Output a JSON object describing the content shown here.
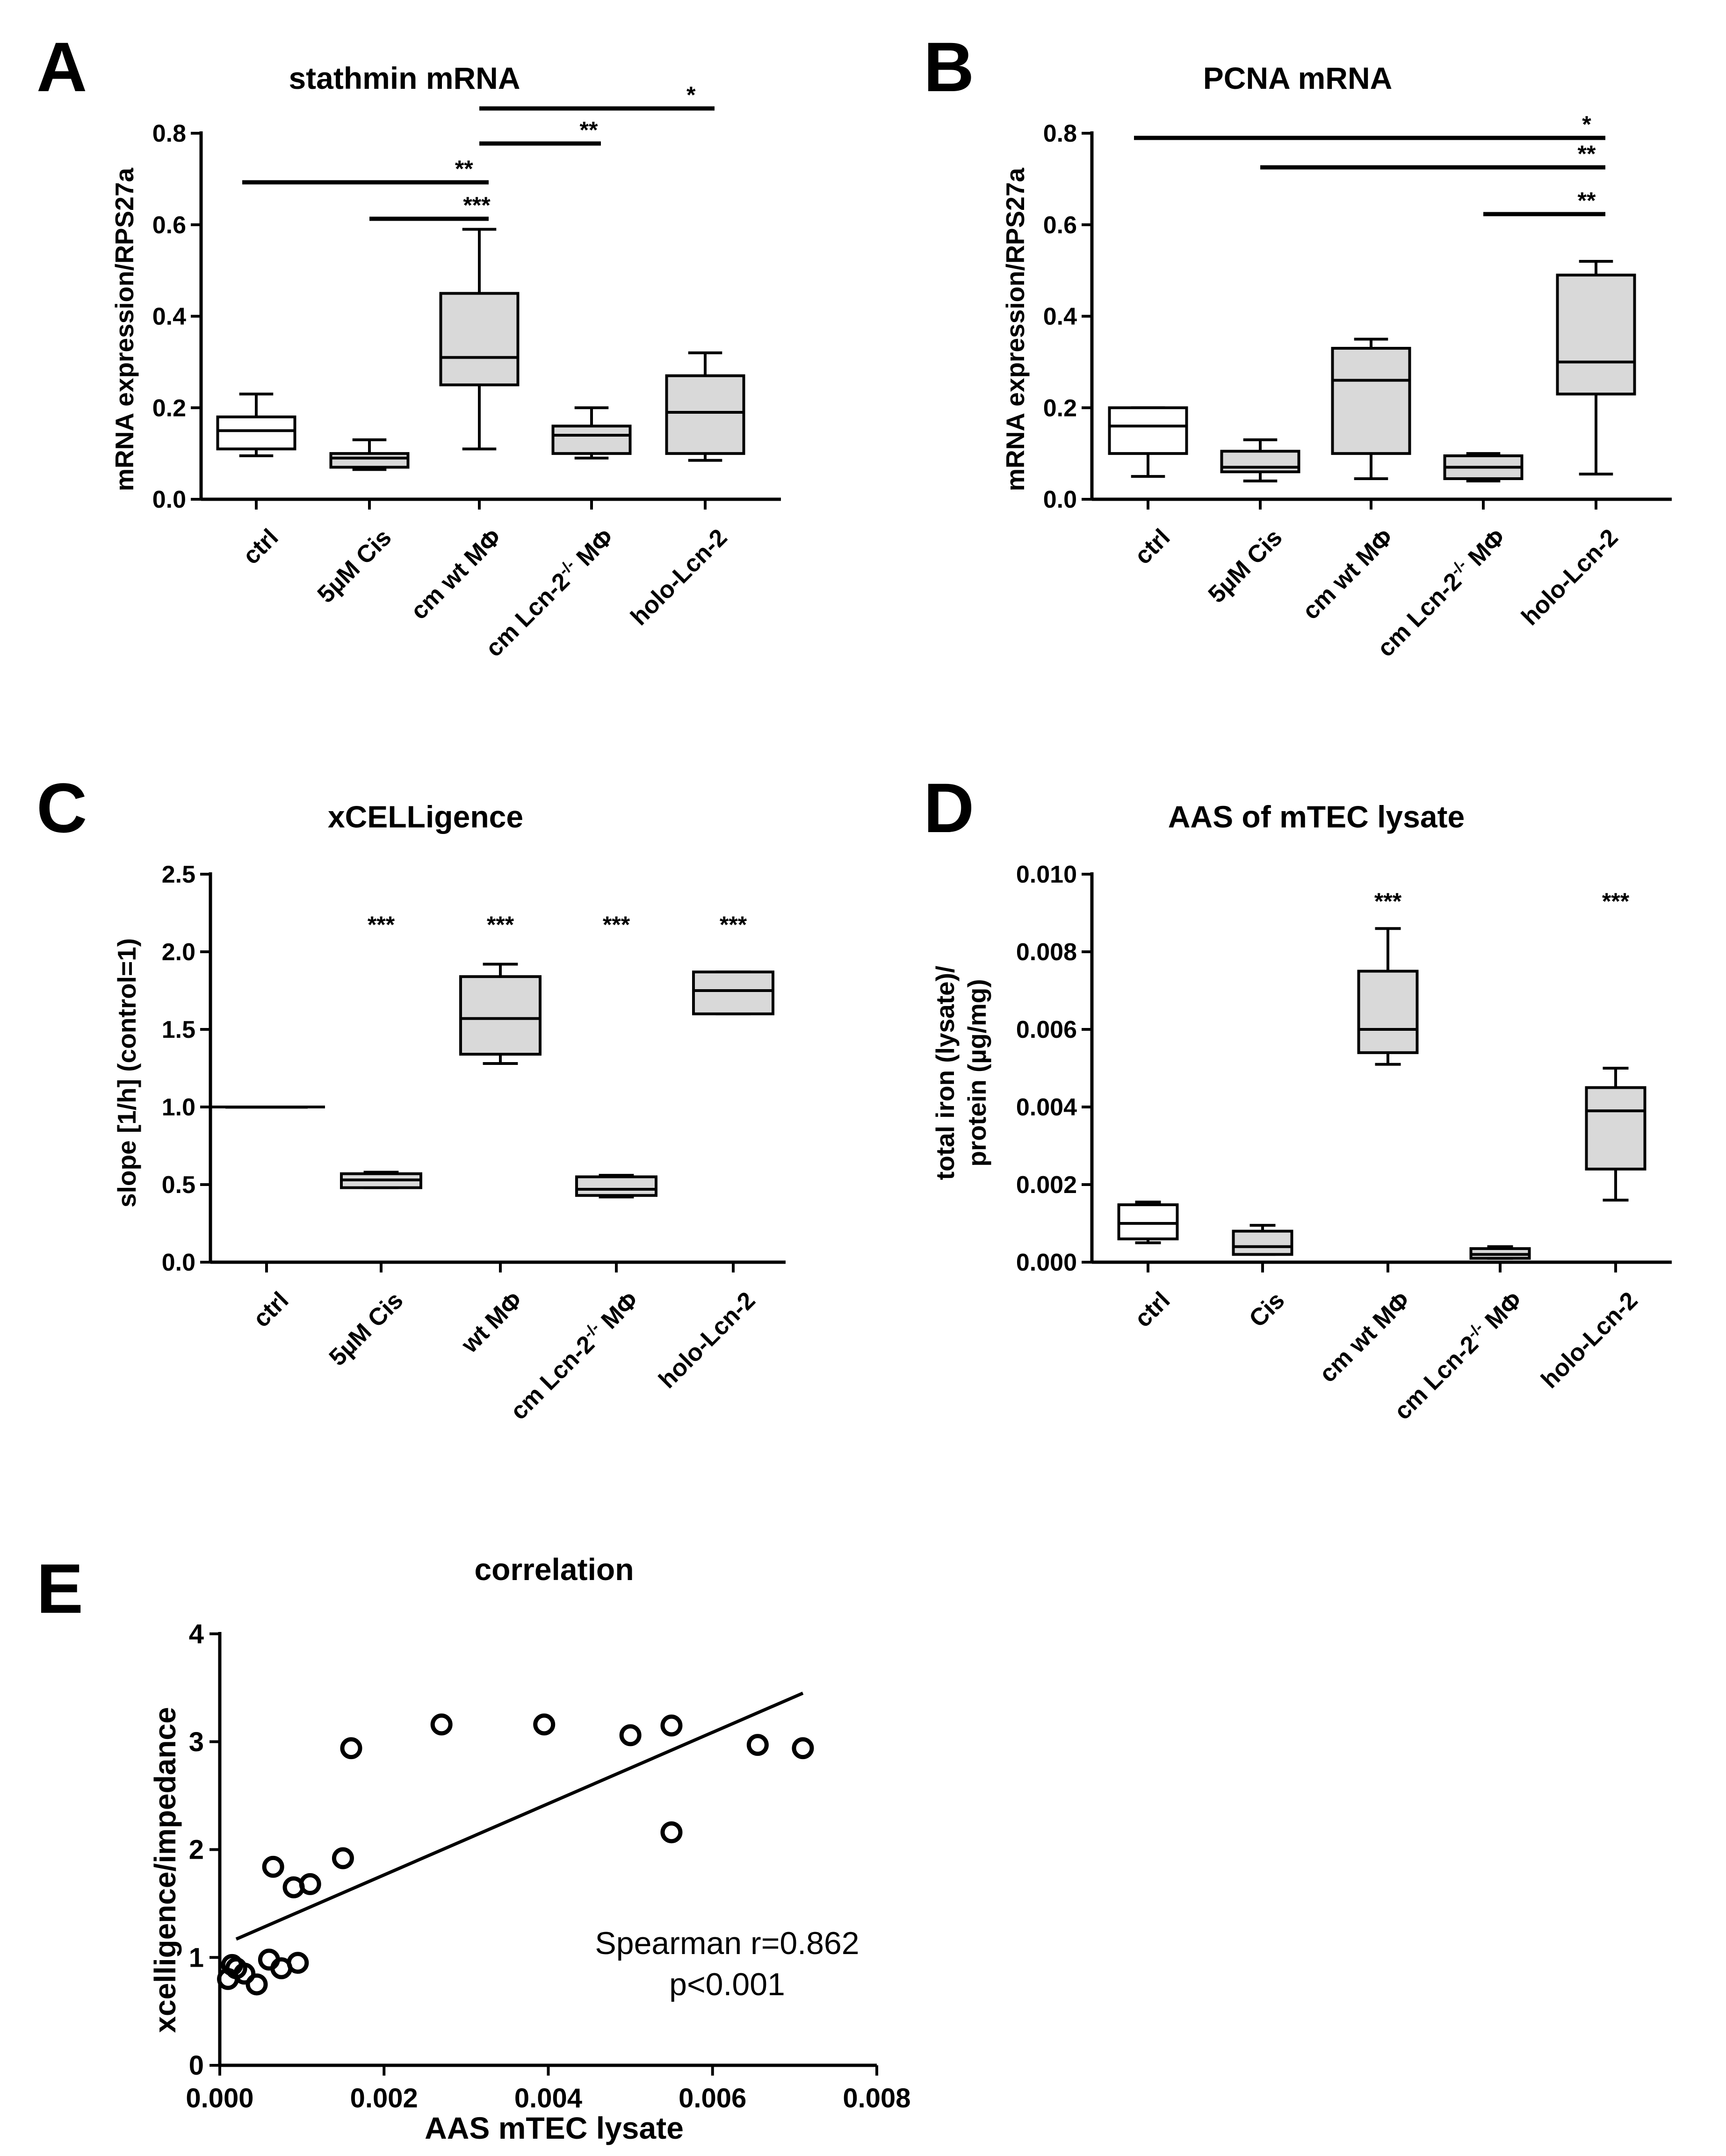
{
  "chart_data": [
    {
      "panel": "A",
      "type": "box",
      "title": "stathmin mRNA",
      "xlabel": "",
      "ylabel": "mRNA expression/RPS27a",
      "ylim": [
        0,
        0.8
      ],
      "yticks": [
        "0.0",
        "0.2",
        "0.4",
        "0.6",
        "0.8"
      ],
      "categories": [
        "ctrl",
        "5µM Cis",
        "cm wt MΦ",
        "cm Lcn-2",
        "holo-Lcn-2"
      ],
      "boxes": [
        {
          "min": 0.095,
          "q1": 0.11,
          "median": 0.15,
          "q3": 0.18,
          "max": 0.23,
          "fill": "#ffffff"
        },
        {
          "min": 0.065,
          "q1": 0.07,
          "median": 0.09,
          "q3": 0.1,
          "max": 0.13,
          "fill": "#d9d9d9"
        },
        {
          "min": 0.11,
          "q1": 0.25,
          "median": 0.31,
          "q3": 0.45,
          "max": 0.59,
          "fill": "#d9d9d9"
        },
        {
          "min": 0.09,
          "q1": 0.1,
          "median": 0.14,
          "q3": 0.16,
          "max": 0.2,
          "fill": "#d9d9d9"
        },
        {
          "min": 0.085,
          "q1": 0.1,
          "median": 0.19,
          "q3": 0.27,
          "max": 0.32,
          "fill": "#d9d9d9"
        }
      ],
      "significance": [
        {
          "from": 2,
          "to": 4,
          "label": "*"
        },
        {
          "from": 2,
          "to": 3,
          "label": "**"
        },
        {
          "from": 0,
          "to": 2,
          "label": "**"
        },
        {
          "from": 1,
          "to": 2,
          "label": "***"
        }
      ]
    },
    {
      "panel": "B",
      "type": "box",
      "title": "PCNA mRNA",
      "xlabel": "",
      "ylabel": "mRNA expression/RPS27a",
      "ylim": [
        0,
        0.8
      ],
      "yticks": [
        "0.0",
        "0.2",
        "0.4",
        "0.6",
        "0.8"
      ],
      "categories": [
        "ctrl",
        "5µM Cis",
        "cm wt MΦ",
        "cm Lcn-2",
        "holo-Lcn-2"
      ],
      "boxes": [
        {
          "min": 0.05,
          "q1": 0.1,
          "median": 0.16,
          "q3": 0.2,
          "max": 0.2,
          "fill": "#ffffff"
        },
        {
          "min": 0.04,
          "q1": 0.06,
          "median": 0.07,
          "q3": 0.105,
          "max": 0.13,
          "fill": "#d9d9d9"
        },
        {
          "min": 0.045,
          "q1": 0.1,
          "median": 0.26,
          "q3": 0.33,
          "max": 0.35,
          "fill": "#d9d9d9"
        },
        {
          "min": 0.04,
          "q1": 0.045,
          "median": 0.07,
          "q3": 0.095,
          "max": 0.1,
          "fill": "#d9d9d9"
        },
        {
          "min": 0.055,
          "q1": 0.23,
          "median": 0.3,
          "q3": 0.49,
          "max": 0.52,
          "fill": "#d9d9d9"
        }
      ],
      "significance": [
        {
          "from": 0,
          "to": 4,
          "label": "*"
        },
        {
          "from": 1,
          "to": 4,
          "label": "**"
        },
        {
          "from": 3,
          "to": 4,
          "label": "**"
        }
      ]
    },
    {
      "panel": "C",
      "type": "box",
      "title": "xCELLigence",
      "xlabel": "",
      "ylabel": "slope [1/h] (control=1)",
      "ylim": [
        0,
        2.5
      ],
      "yticks": [
        "0.0",
        "0.5",
        "1.0",
        "1.5",
        "2.0",
        "2.5"
      ],
      "categories": [
        "ctrl",
        "5µM Cis",
        "wt MΦ",
        "cm Lcn-2",
        "holo-Lcn-2"
      ],
      "boxes": [
        {
          "min": 1.0,
          "q1": 1.0,
          "median": 1.0,
          "q3": 1.0,
          "max": 1.0,
          "fill": "none"
        },
        {
          "min": 0.48,
          "q1": 0.48,
          "median": 0.53,
          "q3": 0.57,
          "max": 0.58,
          "fill": "#d9d9d9"
        },
        {
          "min": 1.28,
          "q1": 1.34,
          "median": 1.57,
          "q3": 1.84,
          "max": 1.92,
          "fill": "#d9d9d9"
        },
        {
          "min": 0.42,
          "q1": 0.43,
          "median": 0.47,
          "q3": 0.55,
          "max": 0.56,
          "fill": "#d9d9d9"
        },
        {
          "min": 1.6,
          "q1": 1.6,
          "median": 1.75,
          "q3": 1.87,
          "max": 1.87,
          "fill": "#d9d9d9"
        }
      ],
      "stars": [
        null,
        "***",
        "***",
        "***",
        "***"
      ]
    },
    {
      "panel": "D",
      "type": "box",
      "title": "AAS of mTEC lysate",
      "xlabel": "",
      "ylabel_line1": "total iron (lysate)/",
      "ylabel_line2": "protein (µg/mg)",
      "ylim": [
        0,
        0.01
      ],
      "yticks": [
        "0.000",
        "0.002",
        "0.004",
        "0.006",
        "0.008",
        "0.010"
      ],
      "categories": [
        "ctrl",
        "Cis",
        "cm wt MΦ",
        "cm Lcn-2",
        "holo-Lcn-2"
      ],
      "boxes": [
        {
          "min": 0.0005,
          "q1": 0.0006,
          "median": 0.001,
          "q3": 0.00148,
          "max": 0.00155,
          "fill": "#ffffff"
        },
        {
          "min": 0.0002,
          "q1": 0.0002,
          "median": 0.0004,
          "q3": 0.0008,
          "max": 0.00095,
          "fill": "#d9d9d9"
        },
        {
          "min": 0.0051,
          "q1": 0.0054,
          "median": 0.006,
          "q3": 0.0075,
          "max": 0.0086,
          "fill": "#d9d9d9"
        },
        {
          "min": 0.0001,
          "q1": 0.0001,
          "median": 0.0002,
          "q3": 0.00035,
          "max": 0.0004,
          "fill": "#d9d9d9"
        },
        {
          "min": 0.0016,
          "q1": 0.0024,
          "median": 0.0039,
          "q3": 0.0045,
          "max": 0.005,
          "fill": "#d9d9d9"
        }
      ],
      "stars": [
        null,
        null,
        "***",
        null,
        "***"
      ]
    },
    {
      "panel": "E",
      "type": "scatter",
      "title": "correlation",
      "xlabel": "AAS mTEC lysate",
      "ylabel": "xcelligence/impedance",
      "xlim": [
        0,
        0.008
      ],
      "ylim": [
        0,
        4
      ],
      "xticks": [
        "0.000",
        "0.002",
        "0.004",
        "0.006",
        "0.008"
      ],
      "yticks": [
        "0",
        "1",
        "2",
        "3",
        "4"
      ],
      "points": [
        {
          "x": 0.0001,
          "y": 0.8
        },
        {
          "x": 0.00015,
          "y": 0.93
        },
        {
          "x": 0.0002,
          "y": 0.9
        },
        {
          "x": 0.0003,
          "y": 0.85
        },
        {
          "x": 0.00045,
          "y": 0.75
        },
        {
          "x": 0.0006,
          "y": 0.98
        },
        {
          "x": 0.00075,
          "y": 0.9
        },
        {
          "x": 0.00095,
          "y": 0.95
        },
        {
          "x": 0.00065,
          "y": 1.84
        },
        {
          "x": 0.0009,
          "y": 1.65
        },
        {
          "x": 0.0011,
          "y": 1.68
        },
        {
          "x": 0.0015,
          "y": 1.92
        },
        {
          "x": 0.0016,
          "y": 2.94
        },
        {
          "x": 0.0027,
          "y": 3.16
        },
        {
          "x": 0.00395,
          "y": 3.16
        },
        {
          "x": 0.005,
          "y": 3.06
        },
        {
          "x": 0.0055,
          "y": 3.15
        },
        {
          "x": 0.0055,
          "y": 2.16
        },
        {
          "x": 0.00655,
          "y": 2.97
        },
        {
          "x": 0.0071,
          "y": 2.94
        }
      ],
      "fit": {
        "x": [
          0.0002,
          0.0071
        ],
        "y": [
          1.17,
          3.45
        ]
      },
      "annotation_line1": "Spearman r=0.862",
      "annotation_line2": "p<0.001"
    }
  ]
}
